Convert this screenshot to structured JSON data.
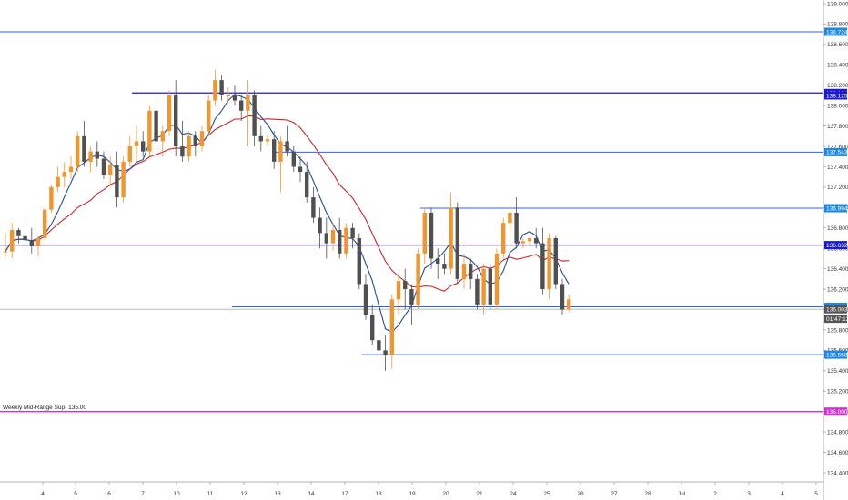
{
  "chart_data": {
    "type": "candlestick",
    "price_axis": {
      "range": [
        134.3,
        139.0
      ],
      "ticks": [
        "139.000",
        "138.800",
        "138.600",
        "138.400",
        "138.200",
        "138.000",
        "137.800",
        "137.600",
        "137.400",
        "137.200",
        "137.000",
        "136.800",
        "136.600",
        "136.400",
        "136.200",
        "136.000",
        "135.800",
        "135.600",
        "135.400",
        "135.200",
        "135.000",
        "134.800",
        "134.600",
        "134.400"
      ]
    },
    "time_axis": {
      "ticks": [
        "4",
        "5",
        "6",
        "7",
        "10",
        "11",
        "12",
        "13",
        "14",
        "17",
        "18",
        "19",
        "20",
        "21",
        "24",
        "25",
        "26",
        "27",
        "28",
        "Jul",
        "2",
        "3",
        "4",
        "5"
      ]
    },
    "horizontal_levels": [
      {
        "price": 138.724,
        "label": "138.724",
        "color": "#2962ff",
        "width": 1,
        "tag_color": "#1e88e5"
      },
      {
        "price": 138.124,
        "label": "138.124",
        "color": "#1a1ad6",
        "width": 1.3,
        "tag_color": "#1a1ad6"
      },
      {
        "price": 137.543,
        "label": "137.543",
        "color": "#2962ff",
        "width": 1,
        "tag_color": "#1e88e5"
      },
      {
        "price": 136.994,
        "label": "136.994",
        "color": "#2962ff",
        "width": 1,
        "tag_color": "#1e88e5"
      },
      {
        "price": 136.632,
        "label": "136.632",
        "color": "#1a1ad6",
        "width": 1.3,
        "tag_color": "#1a1ad6"
      },
      {
        "price": 136.027,
        "label": "136.027",
        "color": "#2962ff",
        "width": 1,
        "tag_color": "#1e88e5"
      },
      {
        "price": 135.558,
        "label": "135.558",
        "color": "#2962ff",
        "width": 1,
        "tag_color": "#1e88e5"
      },
      {
        "price": 135.0,
        "label": "135.000",
        "color": "#cc33cc",
        "width": 1.3,
        "tag_color": "#cc33cc"
      }
    ],
    "price_tags": [
      {
        "price": 138.1,
        "label": "138.125",
        "color": "#1a1ad6"
      },
      {
        "price": 136.003,
        "label": "136.003",
        "color": "#555555"
      },
      {
        "label": "01:47:13",
        "price": 135.91,
        "color": "#555555"
      }
    ],
    "annotation": {
      "text": "Weekly Mid-Range Sup- 135.00",
      "price": 135.0
    },
    "candles": [
      [
        136.57,
        136.75,
        136.52,
        136.57
      ],
      [
        136.57,
        136.85,
        136.5,
        136.78
      ],
      [
        136.78,
        136.8,
        136.65,
        136.72
      ],
      [
        136.72,
        136.85,
        136.6,
        136.68
      ],
      [
        136.68,
        136.8,
        136.55,
        136.62
      ],
      [
        136.62,
        136.72,
        136.52,
        136.7
      ],
      [
        136.7,
        137.0,
        136.68,
        136.98
      ],
      [
        136.98,
        137.22,
        136.95,
        137.2
      ],
      [
        137.2,
        137.4,
        137.15,
        137.3
      ],
      [
        137.3,
        137.45,
        137.2,
        137.35
      ],
      [
        137.35,
        137.5,
        137.28,
        137.4
      ],
      [
        137.4,
        137.75,
        137.35,
        137.7
      ],
      [
        137.7,
        137.85,
        137.4,
        137.45
      ],
      [
        137.45,
        137.6,
        137.35,
        137.55
      ],
      [
        137.55,
        137.65,
        137.4,
        137.48
      ],
      [
        137.48,
        137.55,
        137.28,
        137.32
      ],
      [
        137.32,
        137.5,
        137.2,
        137.42
      ],
      [
        137.42,
        137.55,
        137.0,
        137.1
      ],
      [
        137.1,
        137.5,
        137.05,
        137.45
      ],
      [
        137.45,
        137.7,
        137.4,
        137.6
      ],
      [
        137.6,
        137.8,
        137.45,
        137.65
      ],
      [
        137.65,
        137.75,
        137.5,
        137.55
      ],
      [
        137.55,
        138.0,
        137.5,
        137.95
      ],
      [
        137.95,
        138.05,
        137.6,
        137.65
      ],
      [
        137.65,
        137.8,
        137.5,
        137.75
      ],
      [
        137.75,
        138.15,
        137.7,
        138.1
      ],
      [
        138.1,
        138.25,
        137.5,
        137.6
      ],
      [
        137.6,
        137.85,
        137.45,
        137.5
      ],
      [
        137.5,
        137.75,
        137.45,
        137.7
      ],
      [
        137.7,
        137.75,
        137.5,
        137.6
      ],
      [
        137.6,
        137.8,
        137.55,
        137.75
      ],
      [
        137.75,
        138.1,
        137.7,
        138.05
      ],
      [
        138.05,
        138.35,
        138.0,
        138.25
      ],
      [
        138.25,
        138.3,
        138.05,
        138.1
      ],
      [
        138.1,
        138.18,
        138.02,
        138.1
      ],
      [
        138.1,
        138.2,
        138.0,
        138.05
      ],
      [
        138.05,
        138.1,
        137.85,
        137.95
      ],
      [
        137.95,
        138.25,
        137.6,
        138.1
      ],
      [
        138.1,
        138.15,
        137.6,
        137.7
      ],
      [
        137.7,
        137.8,
        137.55,
        137.65
      ],
      [
        137.65,
        137.72,
        137.6,
        137.67
      ],
      [
        137.67,
        137.75,
        137.38,
        137.45
      ],
      [
        137.45,
        137.7,
        137.15,
        137.65
      ],
      [
        137.65,
        137.8,
        137.5,
        137.55
      ],
      [
        137.55,
        137.6,
        137.35,
        137.4
      ],
      [
        137.4,
        137.5,
        137.25,
        137.35
      ],
      [
        137.35,
        137.45,
        137.05,
        137.1
      ],
      [
        137.1,
        137.2,
        136.85,
        136.9
      ],
      [
        136.9,
        137.0,
        136.6,
        136.75
      ],
      [
        136.75,
        136.9,
        136.5,
        136.65
      ],
      [
        136.65,
        136.85,
        136.58,
        136.78
      ],
      [
        136.78,
        136.9,
        136.5,
        136.55
      ],
      [
        136.55,
        136.85,
        136.5,
        136.8
      ],
      [
        136.8,
        136.85,
        136.6,
        136.7
      ],
      [
        136.7,
        136.75,
        136.2,
        136.25
      ],
      [
        136.25,
        136.35,
        135.9,
        135.95
      ],
      [
        135.95,
        136.05,
        135.65,
        135.7
      ],
      [
        135.7,
        135.8,
        135.45,
        135.6
      ],
      [
        135.6,
        135.75,
        135.4,
        135.55
      ],
      [
        135.55,
        136.15,
        135.42,
        136.1
      ],
      [
        136.1,
        136.35,
        135.95,
        136.28
      ],
      [
        136.28,
        136.4,
        136.0,
        136.2
      ],
      [
        136.2,
        136.25,
        135.85,
        136.05
      ],
      [
        136.05,
        136.6,
        136.0,
        136.55
      ],
      [
        136.55,
        137.0,
        136.45,
        136.95
      ],
      [
        136.95,
        137.0,
        136.4,
        136.5
      ],
      [
        136.5,
        136.6,
        136.3,
        136.45
      ],
      [
        136.45,
        136.55,
        136.35,
        136.4
      ],
      [
        136.4,
        137.15,
        136.35,
        137.0
      ],
      [
        137.0,
        137.05,
        136.25,
        136.3
      ],
      [
        136.3,
        136.55,
        136.2,
        136.45
      ],
      [
        136.45,
        136.5,
        136.2,
        136.3
      ],
      [
        136.3,
        136.35,
        136.0,
        136.05
      ],
      [
        136.05,
        136.45,
        135.95,
        136.4
      ],
      [
        136.4,
        136.45,
        136.0,
        136.05
      ],
      [
        136.05,
        136.6,
        136.0,
        136.55
      ],
      [
        136.55,
        136.9,
        136.5,
        136.85
      ],
      [
        136.85,
        137.0,
        136.75,
        136.95
      ],
      [
        136.95,
        137.1,
        136.6,
        136.65
      ],
      [
        136.65,
        136.7,
        136.6,
        136.67
      ],
      [
        136.67,
        136.72,
        136.62,
        136.7
      ],
      [
        136.7,
        136.8,
        136.6,
        136.65
      ],
      [
        136.65,
        136.8,
        136.15,
        136.2
      ],
      [
        136.2,
        136.75,
        136.1,
        136.7
      ],
      [
        136.7,
        136.72,
        136.2,
        136.25
      ],
      [
        136.25,
        136.3,
        135.95,
        136.0
      ],
      [
        136.0,
        136.15,
        135.98,
        136.1
      ]
    ],
    "moving_averages": [
      {
        "color": "#c62828",
        "period": 14
      },
      {
        "color": "#1e4fa0",
        "period": 5
      }
    ],
    "colors": {
      "up": "#f0962d",
      "down": "#505050",
      "wick_up": "#f0962d",
      "wick_down": "#505050",
      "current_price_line": "#b0b0b0"
    },
    "grid": false
  }
}
